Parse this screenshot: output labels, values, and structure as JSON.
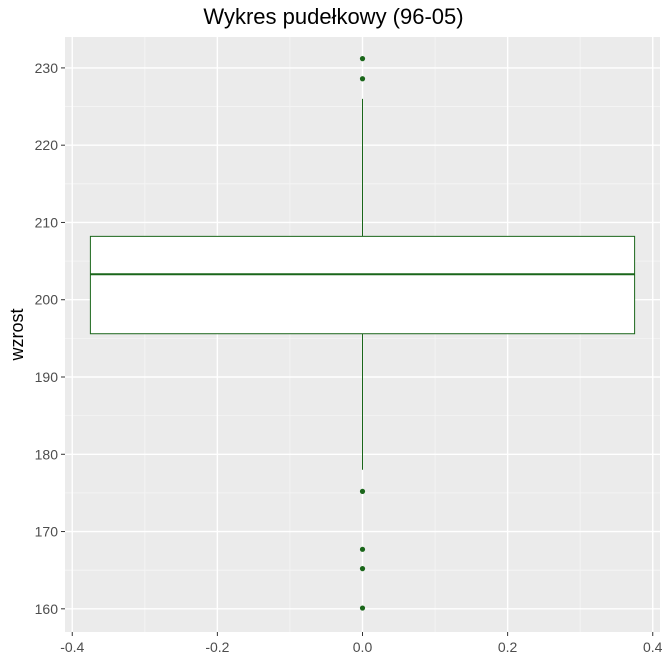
{
  "chart_data": {
    "type": "box",
    "title": "Wykres pudełkowy (96-05)",
    "xlabel": "",
    "ylabel": "wzrost",
    "xlim": [
      -0.41,
      0.41
    ],
    "ylim": [
      157,
      234
    ],
    "x_ticks": [
      -0.4,
      -0.2,
      0.0,
      0.2,
      0.4
    ],
    "x_tick_labels": [
      "-0.4",
      "-0.2",
      "0.0",
      "0.2",
      "0.4"
    ],
    "y_ticks": [
      160,
      170,
      180,
      190,
      200,
      210,
      220,
      230
    ],
    "y_tick_labels": [
      "160",
      "170",
      "180",
      "190",
      "200",
      "210",
      "220",
      "230"
    ],
    "grid": true,
    "box": {
      "x_center": 0.0,
      "x_from": -0.375,
      "x_to": 0.375,
      "q1": 195.6,
      "median": 203.3,
      "q3": 208.2,
      "whisker_low": 178.0,
      "whisker_high": 226.0
    },
    "outliers": [
      231.2,
      228.6,
      175.2,
      167.7,
      165.2,
      160.1
    ],
    "colors": {
      "box_outline": "#1a661a",
      "box_fill": "#ffffff",
      "panel_background": "#ebebeb",
      "grid_major": "#ffffff",
      "grid_minor": "#f5f5f5"
    }
  }
}
